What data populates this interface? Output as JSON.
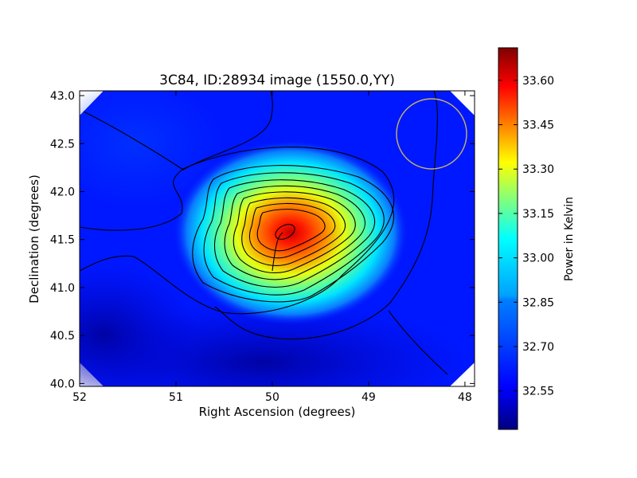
{
  "chart_data": {
    "type": "heatmap",
    "title": "3C84, ID:28934 image (1550.0,YY)",
    "xlabel": "Right Ascension (degrees)",
    "ylabel": "Declination (degrees)",
    "xlim": [
      52.0,
      47.9
    ],
    "ylim": [
      39.97,
      43.05
    ],
    "x_ticks": [
      {
        "value": 52,
        "label": "52"
      },
      {
        "value": 51,
        "label": "51"
      },
      {
        "value": 50,
        "label": "50"
      },
      {
        "value": 49,
        "label": "49"
      },
      {
        "value": 48,
        "label": "48"
      }
    ],
    "y_ticks": [
      {
        "value": 40.0,
        "label": "40.0"
      },
      {
        "value": 40.5,
        "label": "40.5"
      },
      {
        "value": 41.0,
        "label": "41.0"
      },
      {
        "value": 41.5,
        "label": "41.5"
      },
      {
        "value": 42.0,
        "label": "42.0"
      },
      {
        "value": 42.5,
        "label": "42.5"
      },
      {
        "value": 43.0,
        "label": "43.0"
      }
    ],
    "colorbar": {
      "label": "Power in Kelvin",
      "min": 32.42,
      "max": 33.71,
      "ticks": [
        {
          "value": 32.55,
          "label": "32.55"
        },
        {
          "value": 32.7,
          "label": "32.70"
        },
        {
          "value": 32.85,
          "label": "32.85"
        },
        {
          "value": 33.0,
          "label": "33.00"
        },
        {
          "value": 33.15,
          "label": "33.15"
        },
        {
          "value": 33.3,
          "label": "33.30"
        },
        {
          "value": 33.45,
          "label": "33.45"
        },
        {
          "value": 33.6,
          "label": "33.60"
        }
      ]
    },
    "colormap": [
      "#00007f",
      "#0000ff",
      "#007fff",
      "#00ffff",
      "#7fff7f",
      "#ffff00",
      "#ff7f00",
      "#ff0000",
      "#7f0000"
    ],
    "contour_color": "#000000",
    "beam_circle": {
      "ra": 48.37,
      "dec": 42.6,
      "radius_deg": 0.37,
      "color": "#c8b464"
    },
    "peak": {
      "ra": 49.88,
      "dec": 41.58,
      "value": 33.68
    },
    "contour_levels": [
      32.52,
      32.6,
      32.7,
      32.8,
      32.9,
      33.0,
      33.1,
      33.2,
      33.3,
      33.4,
      33.5,
      33.6
    ]
  }
}
